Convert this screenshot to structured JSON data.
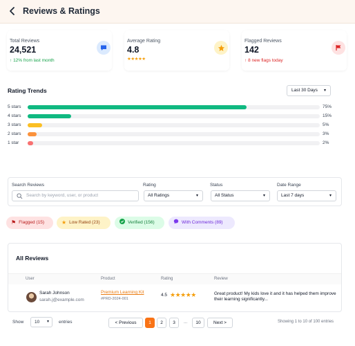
{
  "header": {
    "back_icon": "chevron-left-icon",
    "title": "Reviews & Ratings"
  },
  "stats": [
    {
      "label": "Total Reviews",
      "value": "24,521",
      "sub": "12% from last month",
      "icon": "chat-icon",
      "color": "#2563eb"
    },
    {
      "label": "Average Rating",
      "value": "4.8",
      "stars": "★★★★★",
      "icon": "star-icon",
      "color": "#f59e0b"
    },
    {
      "label": "Flagged Reviews",
      "value": "142",
      "sub": "8 new flags today",
      "icon": "flag-icon",
      "color": "#dc2626"
    }
  ],
  "trends": {
    "title": "Rating Trends",
    "period": "Last 30 Days",
    "rows": [
      {
        "label": "5 stars",
        "pct": "75%",
        "value": 75,
        "color": "#10b981"
      },
      {
        "label": "4 stars",
        "pct": "15%",
        "value": 15,
        "color": "#10b981"
      },
      {
        "label": "3 stars",
        "pct": "5%",
        "value": 5,
        "color": "#fbbf24"
      },
      {
        "label": "2 stars",
        "pct": "3%",
        "value": 3,
        "color": "#fb923c"
      },
      {
        "label": "1 star",
        "pct": "2%",
        "value": 2,
        "color": "#f87171"
      }
    ]
  },
  "filters": {
    "search_label": "Search Reviews",
    "search_placeholder": "Search by keyword, user, or product",
    "rating_label": "Rating",
    "rating_value": "All Ratings",
    "status_label": "Status",
    "status_value": "All Status",
    "date_label": "Date Range",
    "date_value": "Last 7 days"
  },
  "chips": [
    {
      "label": "Flagged (15)",
      "icon": "flag-icon"
    },
    {
      "label": "Low Rated (23)",
      "icon": "star-icon"
    },
    {
      "label": "Verified (156)",
      "icon": "check-circle-icon"
    },
    {
      "label": "With Comments (89)",
      "icon": "chat-icon"
    }
  ],
  "reviews": {
    "title": "All Reviews",
    "columns": [
      "User",
      "Product",
      "Rating",
      "Review"
    ],
    "rows": [
      {
        "name": "Sarah Johnson",
        "email": "sarah.j@example.com",
        "product": "Premium Learning Kit",
        "product_id": "#PRD-2024-001",
        "rating": "4.5",
        "stars": "★★★★★",
        "review": "Great product! My kids love it and it has helped them improve their learning significantly..."
      }
    ]
  },
  "pagination": {
    "show_label": "Show",
    "per_page": "10",
    "entries_label": "entries",
    "prev": "< Previous",
    "pages": [
      "1",
      "2",
      "3"
    ],
    "ellipsis": "...",
    "last": "10",
    "next": "Next >",
    "summary": "Showing 1 to 10 of 100 entries"
  }
}
